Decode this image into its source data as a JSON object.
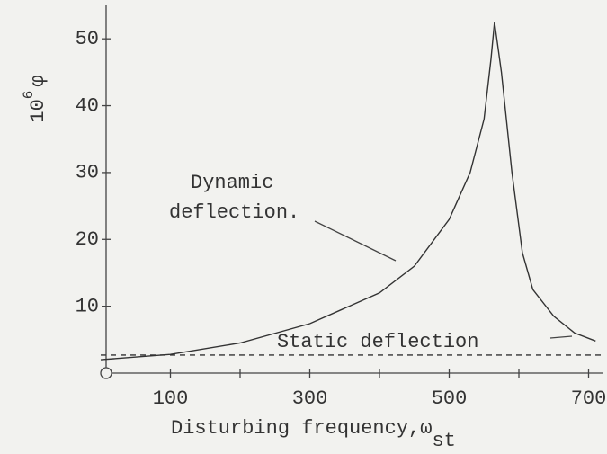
{
  "chart_data": {
    "type": "line",
    "ylabel": {
      "base": "10",
      "exponent": "6",
      "symbol": "φ"
    },
    "xlabel": {
      "text": "Disturbing frequency,",
      "symbol": "ω",
      "subscript": "st"
    },
    "annotations": [
      "Dynamic",
      "deflection.",
      "Static deflection"
    ],
    "xlim": [
      0,
      720
    ],
    "ylim": [
      0,
      55
    ],
    "xticks": [
      100,
      300,
      500,
      700
    ],
    "xminor_ticks": [
      200,
      400,
      600
    ],
    "yticks": [
      10,
      20,
      30,
      40,
      50
    ],
    "series": [
      {
        "color": "#333333",
        "style": "solid",
        "x": [
          0,
          100,
          200,
          300,
          400,
          450,
          500,
          530,
          550,
          560,
          565,
          575,
          590,
          605,
          620,
          650,
          680,
          710
        ],
        "values": [
          2,
          2.8,
          4.5,
          7.4,
          12,
          16,
          23,
          30,
          38,
          47,
          52.5,
          45,
          30,
          18,
          12.5,
          8.5,
          6,
          4.8
        ]
      },
      {
        "color": "#333333",
        "style": "dashed",
        "x": [
          0,
          720
        ],
        "values": [
          2.7,
          2.7
        ]
      }
    ]
  }
}
